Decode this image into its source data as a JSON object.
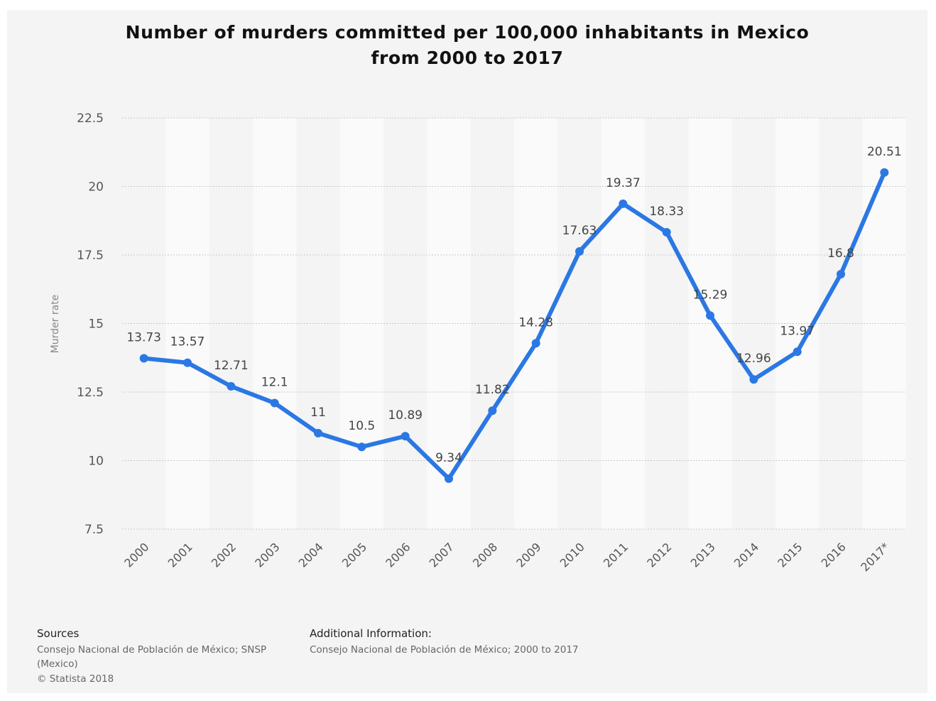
{
  "title_lines": [
    "Number of murders committed per 100,000 inhabitants in Mexico",
    "from 2000 to 2017"
  ],
  "chart_data": {
    "type": "line",
    "title": "Number of murders committed per 100,000 inhabitants in Mexico from 2000 to 2017",
    "xlabel": "",
    "ylabel": "Murder rate",
    "categories": [
      "2000",
      "2001",
      "2002",
      "2003",
      "2004",
      "2005",
      "2006",
      "2007",
      "2008",
      "2009",
      "2010",
      "2011",
      "2012",
      "2013",
      "2014",
      "2015",
      "2016",
      "2017*"
    ],
    "series": [
      {
        "values": [
          13.73,
          13.57,
          12.71,
          12.1,
          11,
          10.5,
          10.89,
          9.34,
          11.82,
          14.28,
          17.63,
          19.37,
          18.33,
          15.29,
          12.96,
          13.97,
          16.8,
          20.51
        ],
        "color": "#2b78e4"
      }
    ],
    "data_labels": [
      "13.73",
      "13.57",
      "12.71",
      "12.1",
      "11",
      "10.5",
      "10.89",
      "9.34",
      "11.82",
      "14.28",
      "17.63",
      "19.37",
      "18.33",
      "15.29",
      "12.96",
      "13.97",
      "16.8",
      "20.51"
    ],
    "ylim": [
      7.5,
      22.5
    ],
    "yticks": [
      7.5,
      10,
      12.5,
      15,
      17.5,
      20,
      22.5
    ],
    "ytick_labels": [
      "7.5",
      "10",
      "12.5",
      "15",
      "17.5",
      "20",
      "22.5"
    ],
    "grid": true,
    "legend": "none",
    "colors": {
      "line": "#2b78e4",
      "band_light": "#fafafa",
      "background": "#f4f4f4",
      "grid": "#c8c8c8"
    }
  },
  "footer": {
    "sources_heading": "Sources",
    "sources_text": "Consejo Nacional de Población de México; SNSP",
    "sources_text_2": "(Mexico)",
    "copyright": "© Statista 2018",
    "additional_heading": "Additional Information:",
    "additional_text": "Consejo Nacional de Población de México; 2000 to 2017"
  }
}
